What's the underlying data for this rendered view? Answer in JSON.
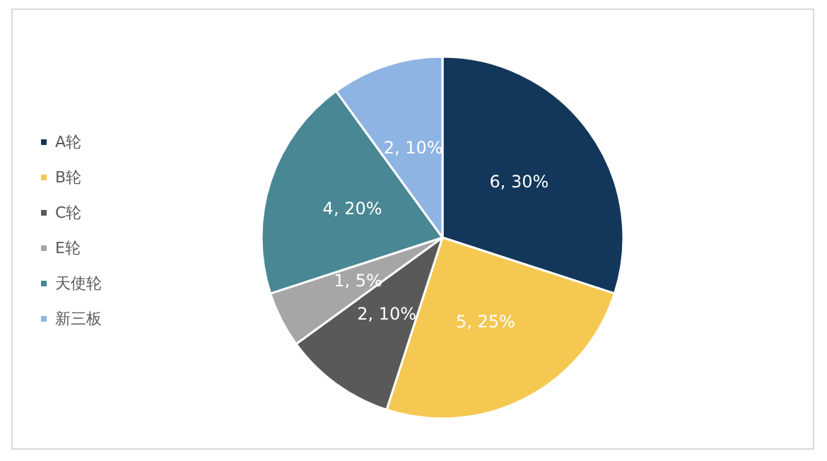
{
  "chart_data": {
    "type": "pie",
    "categories": [
      "A轮",
      "B轮",
      "C轮",
      "E轮",
      "天使轮",
      "新三板"
    ],
    "values": [
      6,
      5,
      2,
      1,
      4,
      2
    ],
    "value_labels": [
      "6, 30%",
      "5, 25%",
      "2, 10%",
      "1, 5%",
      "4, 20%",
      "2, 10%"
    ],
    "colors": [
      "#12375a",
      "#f5c851",
      "#595959",
      "#a6a6a6",
      "#4a8795",
      "#8eb4e3"
    ],
    "legend": "left"
  }
}
